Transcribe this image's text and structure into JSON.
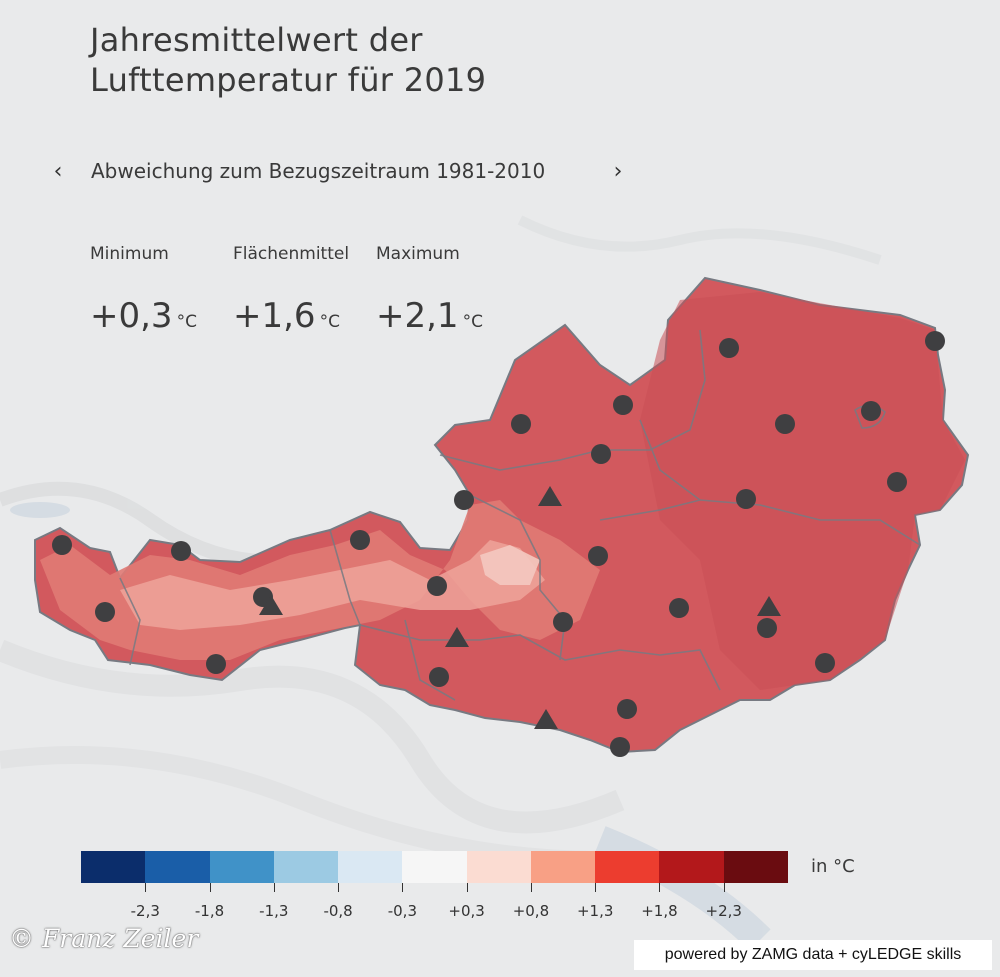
{
  "title": {
    "line1": "Jahresmittelwert der",
    "line2": "Lufttemperatur für 2019"
  },
  "nav": {
    "subtitle": "Abweichung zum Bezugszeitraum 1981-2010",
    "prev_glyph": "‹",
    "next_glyph": "›"
  },
  "stats": [
    {
      "label": "Minimum",
      "value": "+0,3",
      "unit": "°C"
    },
    {
      "label": "Flächenmittel",
      "value": "+1,6",
      "unit": "°C"
    },
    {
      "label": "Maximum",
      "value": "+2,1",
      "unit": "°C"
    }
  ],
  "legend": {
    "unit": "in °C",
    "colors": [
      "#0b2d6b",
      "#1a5ea8",
      "#4092c8",
      "#9ccae3",
      "#dae8f3",
      "#f6f6f6",
      "#fbdcd2",
      "#f8a085",
      "#ec3d2f",
      "#b3181b",
      "#6a0c10"
    ],
    "labels": [
      "-2,3",
      "-1,8",
      "-1,3",
      "-0,8",
      "-0,3",
      "+0,3",
      "+0,8",
      "+1,3",
      "+1,8",
      "+2,3"
    ]
  },
  "map": {
    "colors": {
      "background": "#e9eaeb",
      "country_fill": "#d2595e",
      "warm_fill": "#e07a74",
      "alpine_fill": "#eea39a",
      "peak_fill": "#f4c9c0",
      "border": "#777a82",
      "station": "#3f3f41"
    },
    "station_icons": {
      "circle": "station-circle-icon",
      "triangle": "mountain-station-triangle-icon"
    }
  },
  "credit": "© Franz Zeiler",
  "powered_by": "powered by ZAMG data + cyLEDGE skills"
}
